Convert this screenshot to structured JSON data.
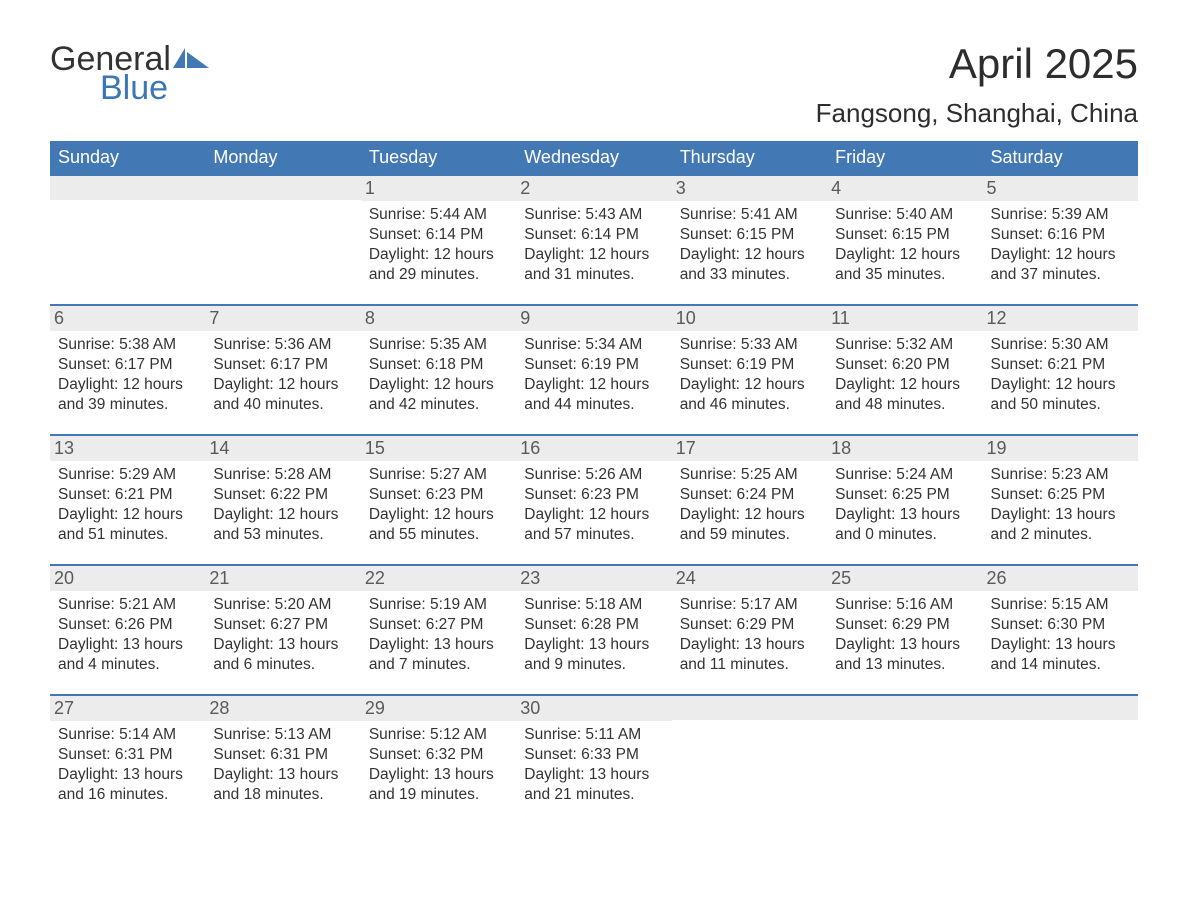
{
  "logo": {
    "text1": "General",
    "text2": "Blue"
  },
  "title": "April 2025",
  "location": "Fangsong, Shanghai, China",
  "colors": {
    "header_bg": "#4279b5",
    "header_text": "#ffffff",
    "daynum_bg": "#ececec",
    "daynum_text": "#5a5a5a",
    "body_text": "#333333",
    "logo_accent": "#3b77b5",
    "background": "#ffffff"
  },
  "day_headers": [
    "Sunday",
    "Monday",
    "Tuesday",
    "Wednesday",
    "Thursday",
    "Friday",
    "Saturday"
  ],
  "weeks": [
    [
      null,
      null,
      {
        "n": "1",
        "sunrise": "Sunrise: 5:44 AM",
        "sunset": "Sunset: 6:14 PM",
        "daylight": "Daylight: 12 hours and 29 minutes."
      },
      {
        "n": "2",
        "sunrise": "Sunrise: 5:43 AM",
        "sunset": "Sunset: 6:14 PM",
        "daylight": "Daylight: 12 hours and 31 minutes."
      },
      {
        "n": "3",
        "sunrise": "Sunrise: 5:41 AM",
        "sunset": "Sunset: 6:15 PM",
        "daylight": "Daylight: 12 hours and 33 minutes."
      },
      {
        "n": "4",
        "sunrise": "Sunrise: 5:40 AM",
        "sunset": "Sunset: 6:15 PM",
        "daylight": "Daylight: 12 hours and 35 minutes."
      },
      {
        "n": "5",
        "sunrise": "Sunrise: 5:39 AM",
        "sunset": "Sunset: 6:16 PM",
        "daylight": "Daylight: 12 hours and 37 minutes."
      }
    ],
    [
      {
        "n": "6",
        "sunrise": "Sunrise: 5:38 AM",
        "sunset": "Sunset: 6:17 PM",
        "daylight": "Daylight: 12 hours and 39 minutes."
      },
      {
        "n": "7",
        "sunrise": "Sunrise: 5:36 AM",
        "sunset": "Sunset: 6:17 PM",
        "daylight": "Daylight: 12 hours and 40 minutes."
      },
      {
        "n": "8",
        "sunrise": "Sunrise: 5:35 AM",
        "sunset": "Sunset: 6:18 PM",
        "daylight": "Daylight: 12 hours and 42 minutes."
      },
      {
        "n": "9",
        "sunrise": "Sunrise: 5:34 AM",
        "sunset": "Sunset: 6:19 PM",
        "daylight": "Daylight: 12 hours and 44 minutes."
      },
      {
        "n": "10",
        "sunrise": "Sunrise: 5:33 AM",
        "sunset": "Sunset: 6:19 PM",
        "daylight": "Daylight: 12 hours and 46 minutes."
      },
      {
        "n": "11",
        "sunrise": "Sunrise: 5:32 AM",
        "sunset": "Sunset: 6:20 PM",
        "daylight": "Daylight: 12 hours and 48 minutes."
      },
      {
        "n": "12",
        "sunrise": "Sunrise: 5:30 AM",
        "sunset": "Sunset: 6:21 PM",
        "daylight": "Daylight: 12 hours and 50 minutes."
      }
    ],
    [
      {
        "n": "13",
        "sunrise": "Sunrise: 5:29 AM",
        "sunset": "Sunset: 6:21 PM",
        "daylight": "Daylight: 12 hours and 51 minutes."
      },
      {
        "n": "14",
        "sunrise": "Sunrise: 5:28 AM",
        "sunset": "Sunset: 6:22 PM",
        "daylight": "Daylight: 12 hours and 53 minutes."
      },
      {
        "n": "15",
        "sunrise": "Sunrise: 5:27 AM",
        "sunset": "Sunset: 6:23 PM",
        "daylight": "Daylight: 12 hours and 55 minutes."
      },
      {
        "n": "16",
        "sunrise": "Sunrise: 5:26 AM",
        "sunset": "Sunset: 6:23 PM",
        "daylight": "Daylight: 12 hours and 57 minutes."
      },
      {
        "n": "17",
        "sunrise": "Sunrise: 5:25 AM",
        "sunset": "Sunset: 6:24 PM",
        "daylight": "Daylight: 12 hours and 59 minutes."
      },
      {
        "n": "18",
        "sunrise": "Sunrise: 5:24 AM",
        "sunset": "Sunset: 6:25 PM",
        "daylight": "Daylight: 13 hours and 0 minutes."
      },
      {
        "n": "19",
        "sunrise": "Sunrise: 5:23 AM",
        "sunset": "Sunset: 6:25 PM",
        "daylight": "Daylight: 13 hours and 2 minutes."
      }
    ],
    [
      {
        "n": "20",
        "sunrise": "Sunrise: 5:21 AM",
        "sunset": "Sunset: 6:26 PM",
        "daylight": "Daylight: 13 hours and 4 minutes."
      },
      {
        "n": "21",
        "sunrise": "Sunrise: 5:20 AM",
        "sunset": "Sunset: 6:27 PM",
        "daylight": "Daylight: 13 hours and 6 minutes."
      },
      {
        "n": "22",
        "sunrise": "Sunrise: 5:19 AM",
        "sunset": "Sunset: 6:27 PM",
        "daylight": "Daylight: 13 hours and 7 minutes."
      },
      {
        "n": "23",
        "sunrise": "Sunrise: 5:18 AM",
        "sunset": "Sunset: 6:28 PM",
        "daylight": "Daylight: 13 hours and 9 minutes."
      },
      {
        "n": "24",
        "sunrise": "Sunrise: 5:17 AM",
        "sunset": "Sunset: 6:29 PM",
        "daylight": "Daylight: 13 hours and 11 minutes."
      },
      {
        "n": "25",
        "sunrise": "Sunrise: 5:16 AM",
        "sunset": "Sunset: 6:29 PM",
        "daylight": "Daylight: 13 hours and 13 minutes."
      },
      {
        "n": "26",
        "sunrise": "Sunrise: 5:15 AM",
        "sunset": "Sunset: 6:30 PM",
        "daylight": "Daylight: 13 hours and 14 minutes."
      }
    ],
    [
      {
        "n": "27",
        "sunrise": "Sunrise: 5:14 AM",
        "sunset": "Sunset: 6:31 PM",
        "daylight": "Daylight: 13 hours and 16 minutes."
      },
      {
        "n": "28",
        "sunrise": "Sunrise: 5:13 AM",
        "sunset": "Sunset: 6:31 PM",
        "daylight": "Daylight: 13 hours and 18 minutes."
      },
      {
        "n": "29",
        "sunrise": "Sunrise: 5:12 AM",
        "sunset": "Sunset: 6:32 PM",
        "daylight": "Daylight: 13 hours and 19 minutes."
      },
      {
        "n": "30",
        "sunrise": "Sunrise: 5:11 AM",
        "sunset": "Sunset: 6:33 PM",
        "daylight": "Daylight: 13 hours and 21 minutes."
      },
      null,
      null,
      null
    ]
  ]
}
